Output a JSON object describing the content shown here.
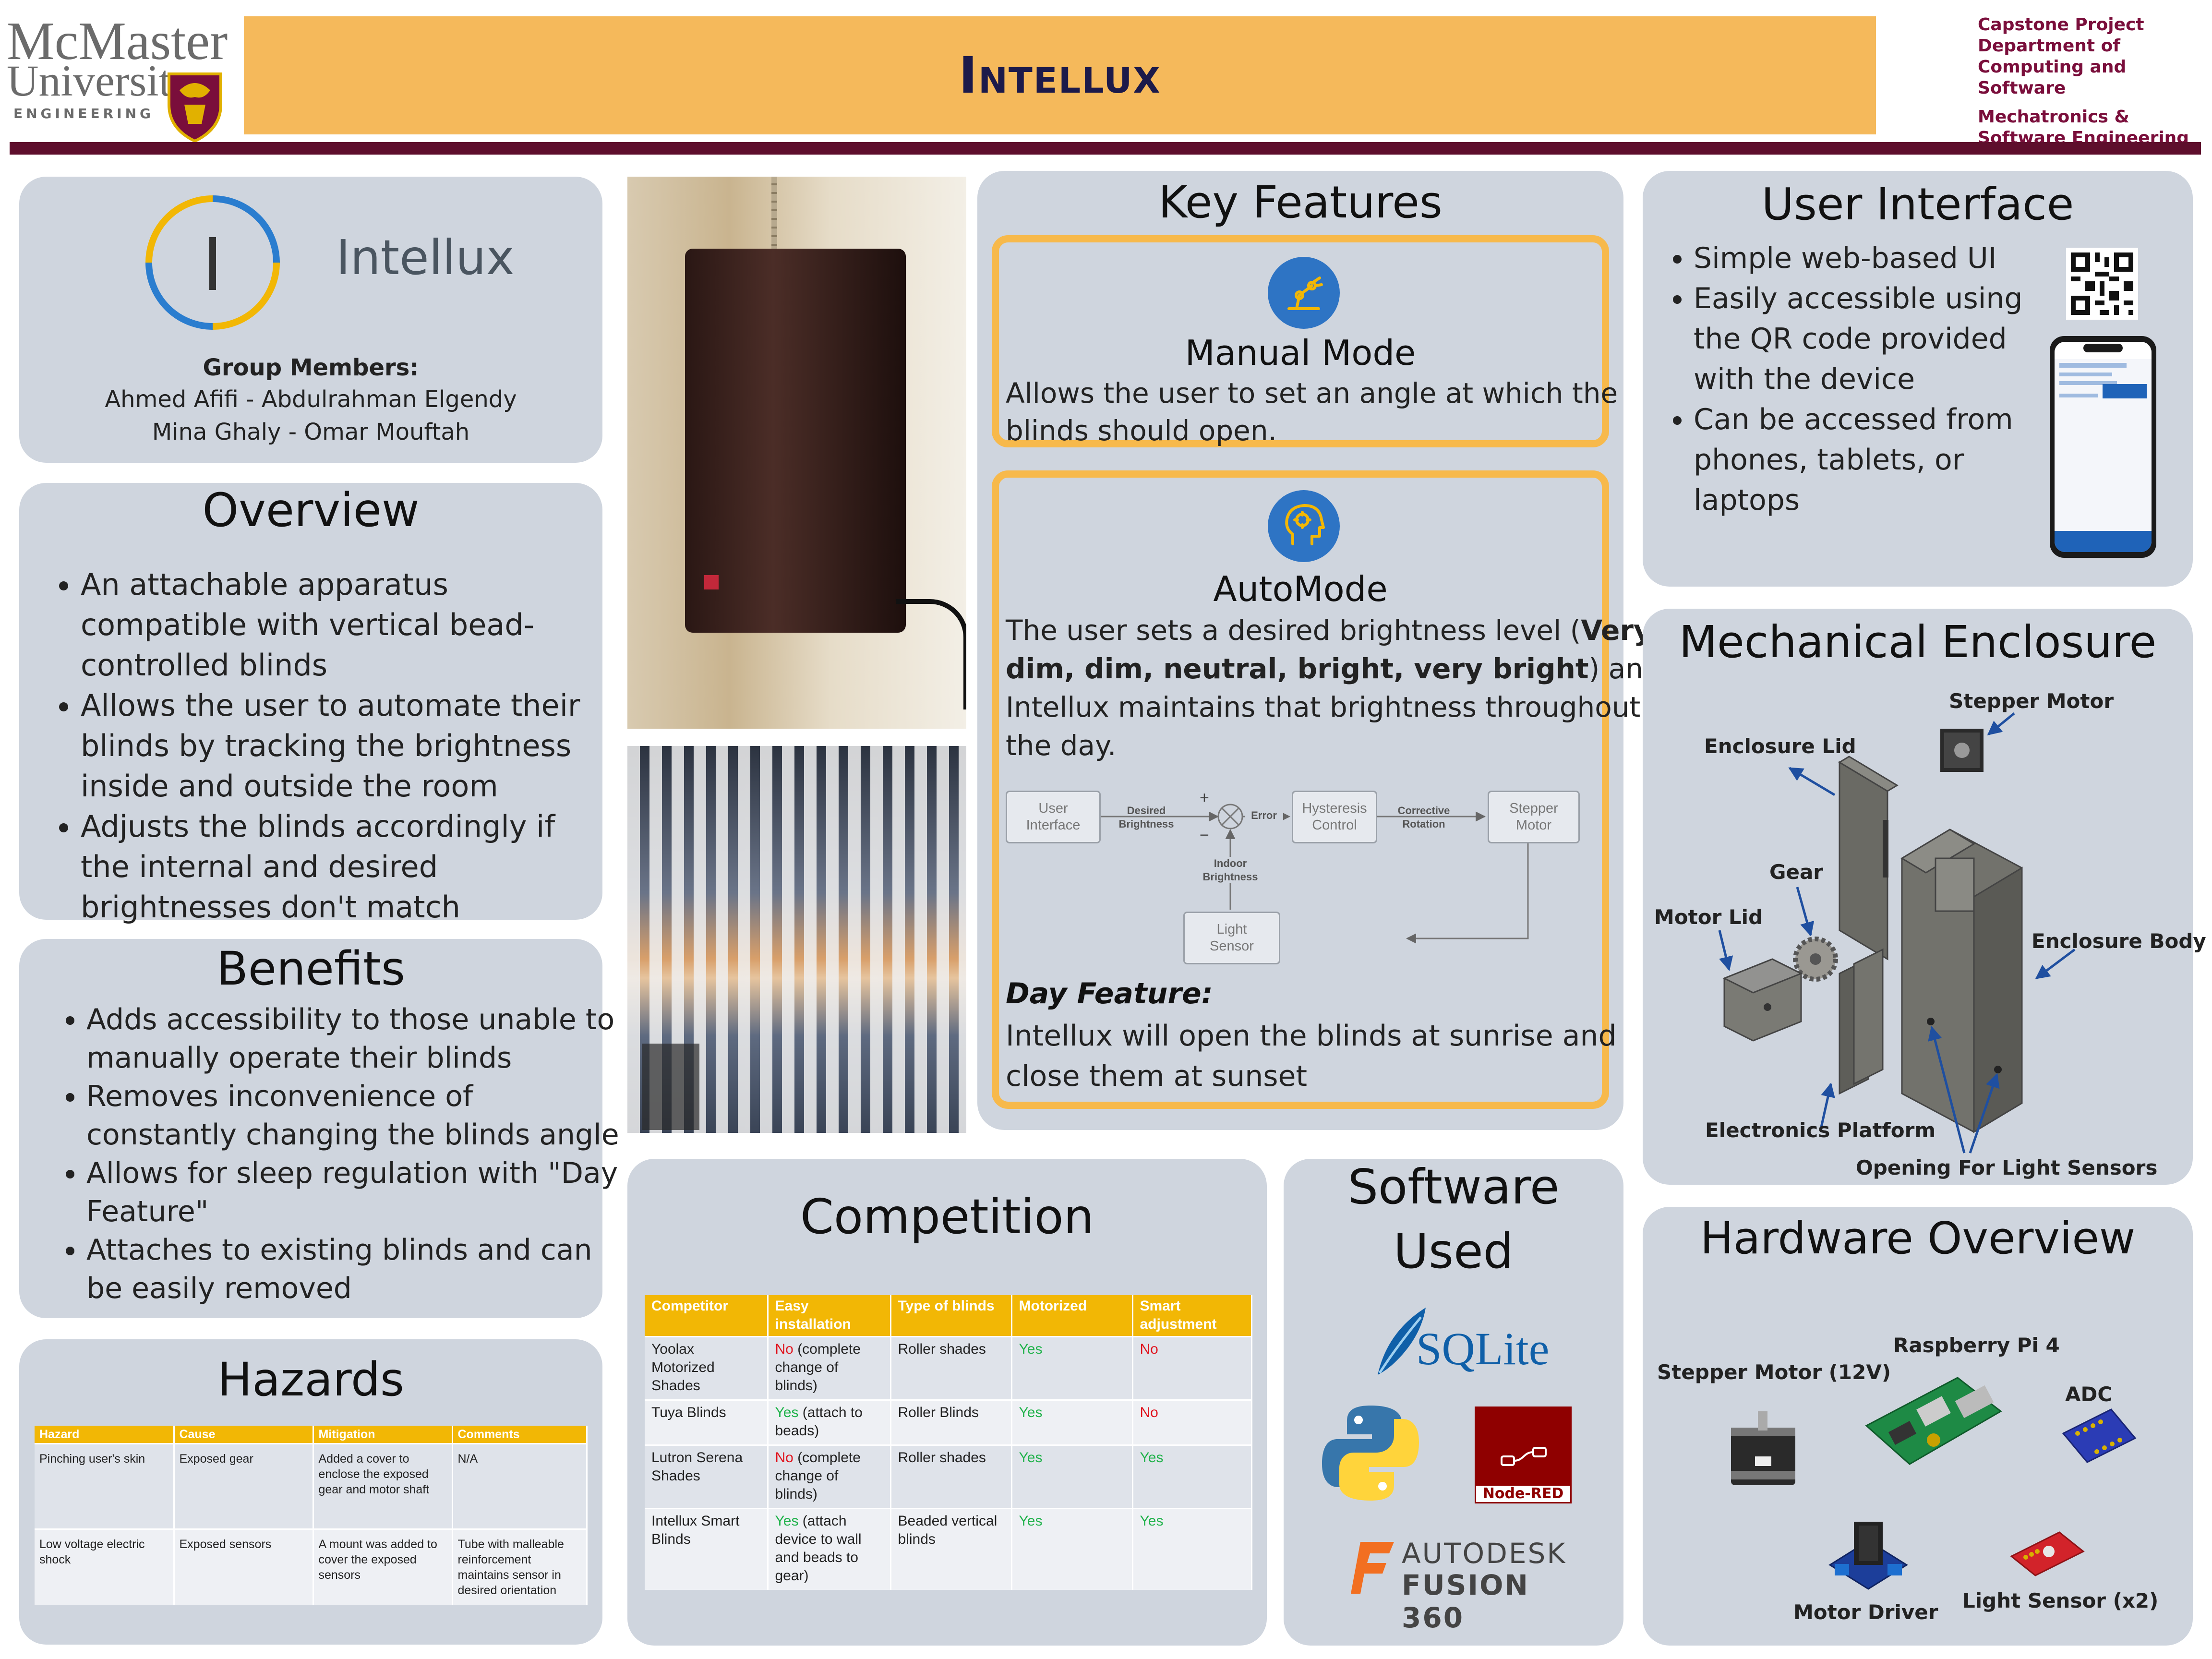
{
  "header": {
    "university_name_1": "McMaster",
    "university_name_2": "University",
    "faculty": "ENGINEERING",
    "title": "Intellux",
    "right_line_1": "Capstone Project",
    "right_line_2": "Department of",
    "right_line_3": "Computing and Software",
    "right_line_4": "Mechatronics &",
    "right_line_5": "Software Engineering",
    "colors": {
      "banner": "#f5b95b",
      "maroon": "#7a0e3b",
      "title": "#1c1a4a"
    }
  },
  "team": {
    "logo_text": "Intellux",
    "heading": "Group Members:",
    "members_line_1": "Ahmed Afifi - Abdulrahman Elgendy",
    "members_line_2": "Mina Ghaly - Omar Mouftah"
  },
  "overview": {
    "title": "Overview",
    "bullets": [
      "An attachable apparatus compatible with vertical bead-controlled blinds",
      "Allows the user to automate their blinds by tracking the brightness inside and outside the room",
      "Adjusts the blinds accordingly if the internal and desired brightnesses don't match"
    ]
  },
  "benefits": {
    "title": "Benefits",
    "bullets": [
      "Adds accessibility to those unable to manually operate their blinds",
      "Removes inconvenience of constantly changing the blinds angle",
      "Allows for sleep regulation with \"Day Feature\"",
      "Attaches to existing blinds and can be easily removed"
    ]
  },
  "hazards": {
    "title": "Hazards",
    "headers": [
      "Hazard",
      "Cause",
      "Mitigation",
      "Comments"
    ],
    "rows": [
      [
        "Pinching user's skin",
        "Exposed gear",
        "Added a cover to enclose the exposed gear and motor shaft",
        "N/A"
      ],
      [
        "Low voltage electric shock",
        "Exposed sensors",
        "A mount was added to cover the exposed sensors",
        "Tube with malleable reinforcement maintains sensor in desired orientation"
      ]
    ]
  },
  "key_features": {
    "title": "Key Features",
    "manual": {
      "title": "Manual Mode",
      "desc_1": "Allows the user to set an angle at which the",
      "desc_2": "blinds should open."
    },
    "auto": {
      "title": "AutoMode",
      "desc_a": "The user sets a desired brightness level (",
      "desc_bold_1": "Very",
      "desc_bold_2": "dim, dim, neutral, bright, very bright",
      "desc_b": ") and",
      "desc_c": "Intellux maintains that brightness throughout",
      "desc_d": "the day."
    },
    "diagram": {
      "user_interface": "User\nInterface",
      "desired_brightness": "Desired\nBrightness",
      "plus": "+",
      "minus": "−",
      "error": "Error",
      "hysteresis": "Hysteresis\nControl",
      "corrective": "Corrective\nRotation",
      "stepper": "Stepper\nMotor",
      "indoor": "Indoor\nBrightness",
      "light_sensor": "Light\nSensor"
    },
    "day": {
      "title": "Day Feature:",
      "desc_1": "Intellux will open the blinds at sunrise and",
      "desc_2": "close them at sunset"
    }
  },
  "user_interface": {
    "title": "User Interface",
    "bullets": [
      "Simple web-based UI",
      "Easily accessible using the QR code provided with the device",
      "Can be accessed from phones, tablets, or laptops"
    ]
  },
  "mechanical": {
    "title": "Mechanical Enclosure",
    "labels": {
      "stepper_motor": "Stepper Motor",
      "enclosure_lid": "Enclosure Lid",
      "gear": "Gear",
      "motor_lid": "Motor Lid",
      "enclosure_body": "Enclosure Body",
      "electronics_platform": "Electronics Platform",
      "opening": "Opening For Light Sensors"
    }
  },
  "competition": {
    "title": "Competition",
    "headers": [
      "Competitor",
      "Easy installation",
      "Type of blinds",
      "Motorized",
      "Smart adjustment"
    ],
    "rows": [
      {
        "competitor": "Yoolax Motorized Shades",
        "easy_flag": "No",
        "easy_note": " (complete change of blinds)",
        "type": "Roller shades",
        "motorized": "Yes",
        "smart": "No"
      },
      {
        "competitor": "Tuya Blinds",
        "easy_flag": "Yes",
        "easy_note": " (attach to beads)",
        "type": "Roller Blinds",
        "motorized": "Yes",
        "smart": "No"
      },
      {
        "competitor": "Lutron Serena Shades",
        "easy_flag": "No",
        "easy_note": " (complete change of blinds)",
        "type": "Roller shades",
        "motorized": "Yes",
        "smart": "Yes"
      },
      {
        "competitor": "Intellux Smart Blinds",
        "easy_flag": "Yes",
        "easy_note": " (attach device to wall and beads to gear)",
        "type": "Beaded vertical blinds",
        "motorized": "Yes",
        "smart": "Yes"
      }
    ]
  },
  "software": {
    "title_1": "Software",
    "title_2": "Used",
    "sqlite": "SQLite",
    "nodered": "Node-RED",
    "autodesk": "AUTODESK",
    "fusion": "FUSION 360"
  },
  "hardware": {
    "title": "Hardware Overview",
    "labels": {
      "raspberry": "Raspberry Pi 4",
      "stepper": "Stepper Motor (12V)",
      "adc": "ADC",
      "driver": "Motor Driver",
      "light": "Light Sensor (x2)"
    }
  }
}
